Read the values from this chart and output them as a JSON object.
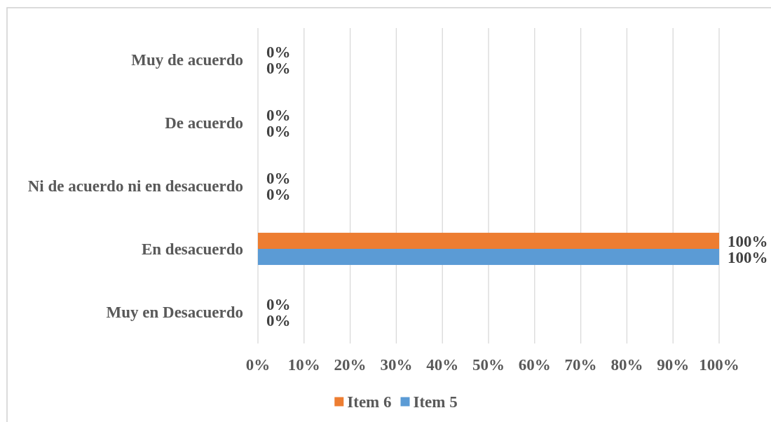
{
  "chart_data": {
    "type": "bar",
    "orientation": "horizontal",
    "categories": [
      "Muy de acuerdo",
      "De acuerdo",
      "Ni de acuerdo ni en desacuerdo",
      "En desacuerdo",
      "Muy en Desacuerdo"
    ],
    "series": [
      {
        "name": "Item 6",
        "color": "#ed7d31",
        "values": [
          0,
          0,
          0,
          100,
          0
        ],
        "value_labels": [
          "0%",
          "0%",
          "0%",
          "100%",
          "0%"
        ]
      },
      {
        "name": "Item 5",
        "color": "#5b9bd5",
        "values": [
          0,
          0,
          0,
          100,
          0
        ],
        "value_labels": [
          "0%",
          "0%",
          "0%",
          "100%",
          "0%"
        ]
      }
    ],
    "xlim": [
      0,
      100
    ],
    "xticks": [
      {
        "value": 0,
        "label": "0%"
      },
      {
        "value": 10,
        "label": "10%"
      },
      {
        "value": 20,
        "label": "20%"
      },
      {
        "value": 30,
        "label": "30%"
      },
      {
        "value": 40,
        "label": "40%"
      },
      {
        "value": 50,
        "label": "50%"
      },
      {
        "value": 60,
        "label": "60%"
      },
      {
        "value": 70,
        "label": "70%"
      },
      {
        "value": 80,
        "label": "80%"
      },
      {
        "value": 90,
        "label": "90%"
      },
      {
        "value": 100,
        "label": "100%"
      }
    ],
    "grid": "x",
    "legend": "bottom"
  }
}
